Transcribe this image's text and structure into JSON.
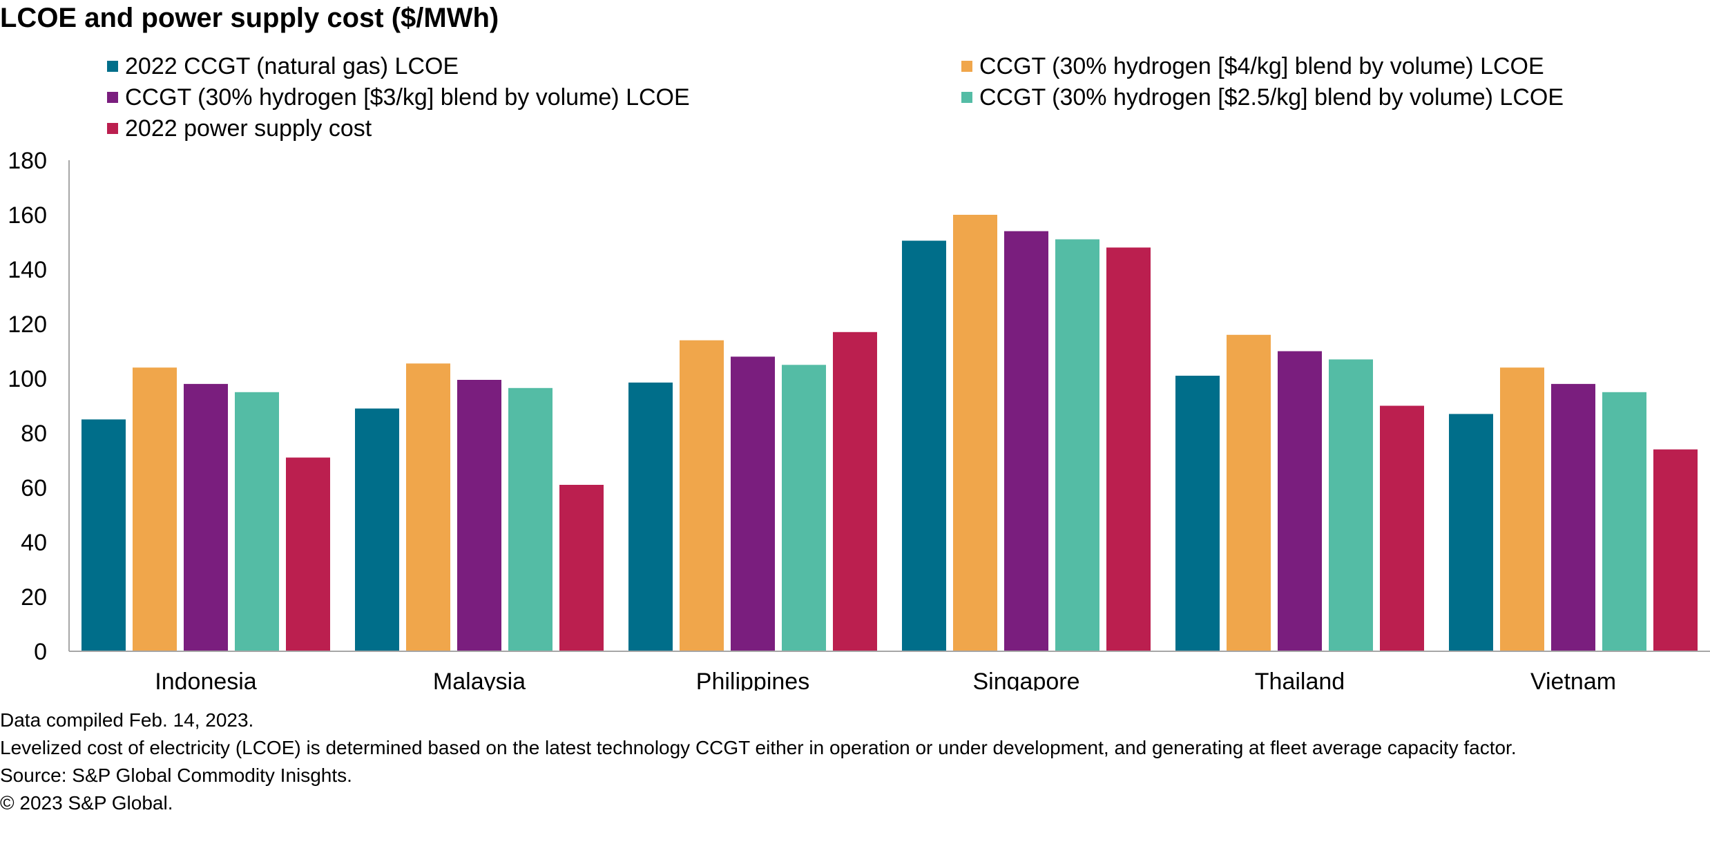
{
  "chart_data": {
    "type": "bar",
    "title": "LCOE and power supply cost ($/MWh)",
    "xlabel": "",
    "ylabel": "",
    "ylim": [
      0,
      180
    ],
    "yticks": [
      0,
      20,
      40,
      60,
      80,
      100,
      120,
      140,
      160,
      180
    ],
    "grid": false,
    "legend_position": "top",
    "categories": [
      "Indonesia",
      "Malaysia",
      "Philippines",
      "Singapore",
      "Thailand",
      "Vietnam"
    ],
    "series": [
      {
        "name": "2022 CCGT (natural gas) LCOE",
        "color": "#006E8A",
        "values": [
          85,
          89,
          98.5,
          150.5,
          101,
          87
        ]
      },
      {
        "name": "CCGT (30% hydrogen [$4/kg] blend by volume) LCOE",
        "color": "#F0A64B",
        "values": [
          104,
          105.5,
          114,
          160,
          116,
          104
        ]
      },
      {
        "name": "CCGT (30% hydrogen [$3/kg] blend by volume) LCOE",
        "color": "#7A1E7E",
        "values": [
          98,
          99.5,
          108,
          154,
          110,
          98
        ]
      },
      {
        "name": "CCGT (30% hydrogen [$2.5/kg] blend by volume) LCOE",
        "color": "#54BCA5",
        "values": [
          95,
          96.5,
          105,
          151,
          107,
          95
        ]
      },
      {
        "name": "2022 power supply cost",
        "color": "#BB1F4F",
        "values": [
          71,
          61,
          117,
          148,
          90,
          74
        ]
      }
    ]
  },
  "notes": {
    "compiled": "Data compiled Feb. 14, 2023.",
    "description": "Levelized cost of electricity (LCOE) is determined based on the latest technology CCGT either in operation or under development, and generating at fleet average capacity factor.",
    "source": "Source: S&P Global Commodity Inisghts.",
    "copyright": "© 2023 S&P Global."
  },
  "colors": {
    "axis": "#A6A6A6",
    "text": "#000000"
  }
}
